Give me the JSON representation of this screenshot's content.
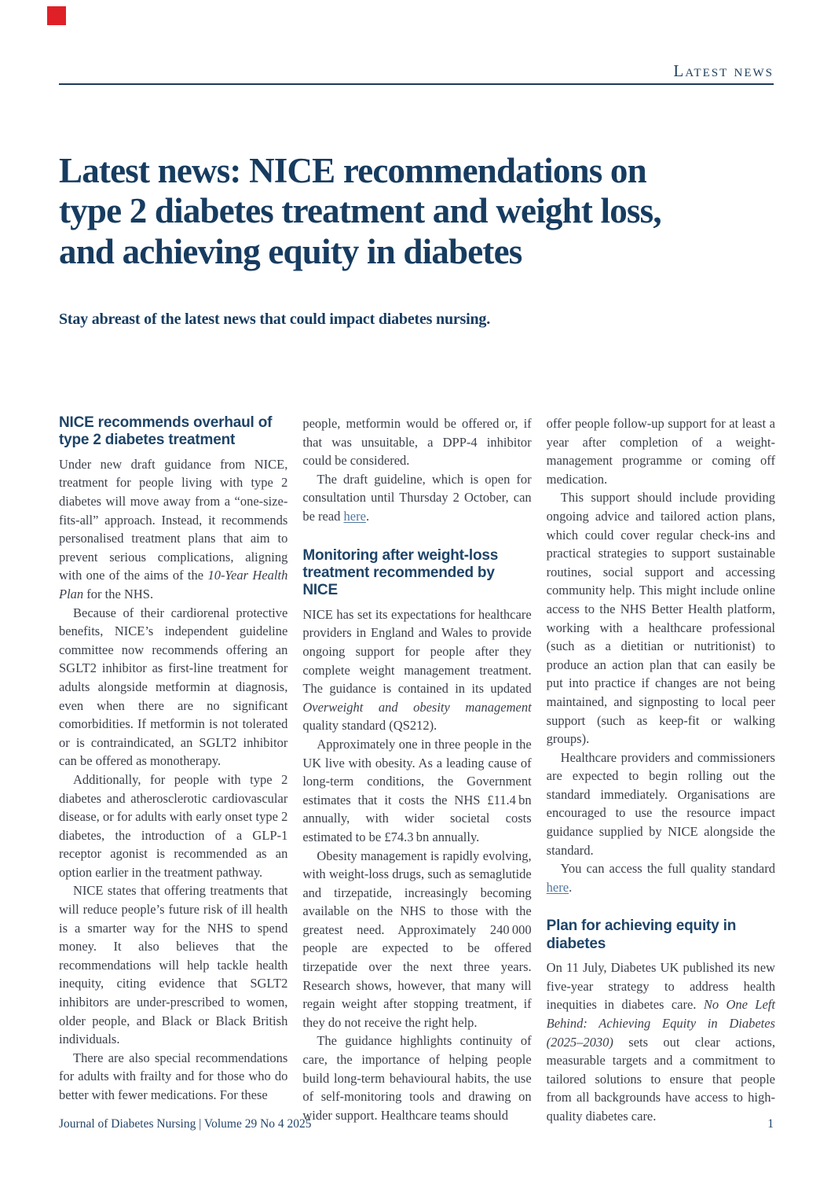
{
  "colors": {
    "accent_red": "#df2127",
    "navy": "#173c60",
    "heading_navy": "#1e4468",
    "body_text": "#3a3f4a"
  },
  "masthead": {
    "kicker": "Latest news"
  },
  "headline": "Latest news: NICE recommendations on\ntype 2 diabetes treatment and weight loss,\nand achieving equity in diabetes",
  "standfirst": "Stay abreast of the latest news that could impact diabetes nursing.",
  "footer": {
    "journal_line": "Journal of Diabetes Nursing | Volume 29 No 4 2025",
    "page_number": "1"
  },
  "columns": [
    {
      "blocks": [
        {
          "type": "h",
          "text": "NICE recommends overhaul of type 2 diabetes treatment"
        },
        {
          "type": "p",
          "indent": false,
          "segments": [
            {
              "t": "Under new draft guidance from NICE, treatment for people living with type 2 diabetes will move away from a “one-size-fits-all” approach. Instead, it recommends personalised treatment plans that aim to prevent serious complications, aligning with one of the aims of the "
            },
            {
              "t": "10-Year Health Plan",
              "s": "i"
            },
            {
              "t": " for the NHS."
            }
          ]
        },
        {
          "type": "p",
          "indent": true,
          "segments": [
            {
              "t": "Because of their cardiorenal protective benefits, NICE’s independent guideline committee now recommends offering an SGLT2 inhibitor as first-line treatment for adults alongside metformin at diagnosis, even when there are no significant comorbidities. If metformin is not tolerated or is contraindicated, an SGLT2 inhibitor can be offered as monotherapy."
            }
          ]
        },
        {
          "type": "p",
          "indent": true,
          "segments": [
            {
              "t": "Additionally, for people with type 2 diabetes and atherosclerotic cardiovascular disease, or for adults with early onset type 2 diabetes, the introduction of a GLP-1 receptor agonist is recommended as an option earlier in the treatment pathway."
            }
          ]
        },
        {
          "type": "p",
          "indent": true,
          "segments": [
            {
              "t": "NICE states that offering treatments that will reduce people’s future risk of ill health is a smarter way for the NHS to spend money. It also believes that the recommendations will help tackle health inequity, citing evidence that SGLT2 inhibitors are under-prescribed to women, older people, and Black or Black British individuals."
            }
          ]
        },
        {
          "type": "p",
          "indent": true,
          "segments": [
            {
              "t": "There are also special recommendations for adults with frailty and for those who do better with fewer medications. For these"
            }
          ]
        }
      ]
    },
    {
      "blocks": [
        {
          "type": "p",
          "indent": false,
          "segments": [
            {
              "t": "people, metformin would be offered or, if that was unsuitable, a DPP-4 inhibitor could be considered."
            }
          ]
        },
        {
          "type": "p",
          "indent": true,
          "segments": [
            {
              "t": "The draft guideline, which is open for consultation until Thursday 2 October, can be read "
            },
            {
              "t": "here",
              "s": "link"
            },
            {
              "t": "."
            }
          ]
        },
        {
          "type": "h",
          "text": "Monitoring after weight-loss treatment recommended by NICE"
        },
        {
          "type": "p",
          "indent": false,
          "segments": [
            {
              "t": "NICE has set its expectations for healthcare providers in England and Wales to provide ongoing support for people after they complete weight management treatment. The guidance is contained in its updated "
            },
            {
              "t": "Overweight and obesity management",
              "s": "i"
            },
            {
              "t": " quality standard (QS212)."
            }
          ]
        },
        {
          "type": "p",
          "indent": true,
          "segments": [
            {
              "t": "Approximately one in three people in the UK live with obesity. As a leading cause of long-term conditions, the Government estimates that it costs the NHS £11.4 bn annually, with wider societal costs estimated to be £74.3 bn annually."
            }
          ]
        },
        {
          "type": "p",
          "indent": true,
          "segments": [
            {
              "t": "Obesity management is rapidly evolving, with weight-loss drugs, such as semaglutide and tirzepatide, increasingly becoming available on the NHS to those with the greatest need. Approximately 240 000 people are expected to be offered tirzepatide over the next three years. Research shows, however, that many will regain weight after stopping treatment, if they do not receive the right help."
            }
          ]
        },
        {
          "type": "p",
          "indent": true,
          "segments": [
            {
              "t": "The guidance highlights continuity of care, the importance of helping people build long-term behavioural habits, the use of self-monitoring tools and drawing on wider support. Healthcare teams should"
            }
          ]
        }
      ]
    },
    {
      "blocks": [
        {
          "type": "p",
          "indent": false,
          "segments": [
            {
              "t": "offer people follow-up support for at least a year after completion of a weight-management programme or coming off medication."
            }
          ]
        },
        {
          "type": "p",
          "indent": true,
          "segments": [
            {
              "t": "This support should include providing ongoing advice and tailored action plans, which could cover regular check-ins and practical strategies to support sustainable routines, social support and accessing community help. This might include online access to the NHS Better Health platform, working with a healthcare professional (such as a dietitian or nutritionist) to produce an action plan that can easily be put into practice if changes are not being maintained, and signposting to local peer support (such as keep-fit or walking groups)."
            }
          ]
        },
        {
          "type": "p",
          "indent": true,
          "segments": [
            {
              "t": "Healthcare providers and commissioners are expected to begin rolling out the standard immediately. Organisations are encouraged to use the resource impact guidance supplied by NICE alongside the standard."
            }
          ]
        },
        {
          "type": "p",
          "indent": true,
          "segments": [
            {
              "t": "You can access the full quality standard "
            },
            {
              "t": "here",
              "s": "link"
            },
            {
              "t": "."
            }
          ]
        },
        {
          "type": "h",
          "text": "Plan for achieving equity in diabetes"
        },
        {
          "type": "p",
          "indent": false,
          "segments": [
            {
              "t": "On 11 July, Diabetes UK published its new five-year strategy to address health inequities in diabetes care. "
            },
            {
              "t": "No One Left Behind: Achieving Equity in Diabetes (2025–2030)",
              "s": "i"
            },
            {
              "t": " sets out clear actions, measurable targets and a commitment to tailored solutions to ensure that people from all backgrounds have access to high-quality diabetes care."
            }
          ]
        }
      ]
    }
  ]
}
